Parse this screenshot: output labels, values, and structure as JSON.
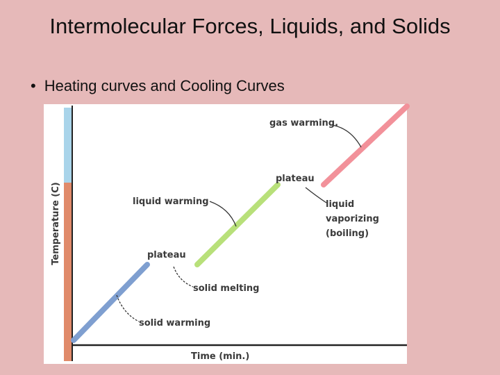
{
  "title": "Intermolecular Forces, Liquids, and Solids",
  "bullets": [
    "Heating curves and Cooling Curves"
  ],
  "figure": {
    "y_axis_label": "Temperature (C)",
    "x_axis_label": "Time (min.)",
    "annotations": [
      "gas warming.",
      "plateau",
      "liquid warming",
      [
        "liquid",
        "vaporizing",
        "(boiling)"
      ],
      "plateau",
      "solid melting",
      "solid warming"
    ]
  }
}
